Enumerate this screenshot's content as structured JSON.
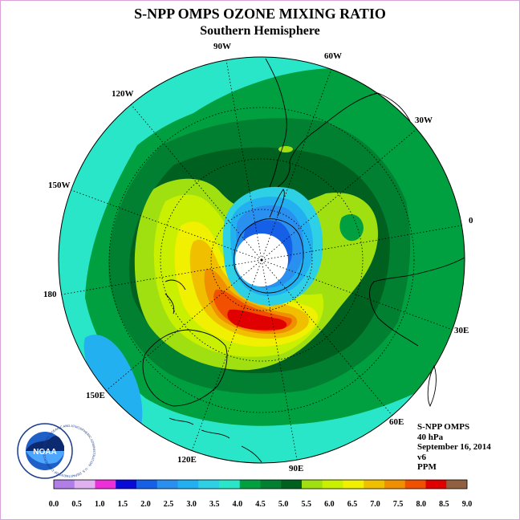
{
  "title": "S-NPP OMPS OZONE MIXING RATIO",
  "subtitle": "Southern Hemisphere",
  "longitude_labels": {
    "w90": "90W",
    "w60": "60W",
    "w30": "30W",
    "zero": "0",
    "e30": "30E",
    "e60": "60E",
    "e90": "90E",
    "e120": "120E",
    "e150": "150E",
    "d180": "180",
    "w150": "150W",
    "w120": "120W"
  },
  "info": {
    "instrument": "S-NPP OMPS",
    "level": "40 hPa",
    "date": "September 16, 2014",
    "version": "v6",
    "units": "PPM"
  },
  "logo": {
    "text": "NOAA",
    "ring_text": "NATIONAL OCEANIC AND ATMOSPHERIC ADMINISTRATION · U.S. DEPARTMENT OF COMMERCE"
  },
  "colorbar": {
    "ticks": [
      "0.0",
      "0.5",
      "1.0",
      "1.5",
      "2.0",
      "2.5",
      "3.0",
      "3.5",
      "4.0",
      "4.5",
      "5.0",
      "5.5",
      "6.0",
      "6.5",
      "7.0",
      "7.5",
      "8.0",
      "8.5",
      "9.0"
    ],
    "colors": [
      "#b07ee6",
      "#e0b0f0",
      "#ee2ed8",
      "#0a0ad8",
      "#1560e6",
      "#2a90f0",
      "#22b0f0",
      "#2ed0e6",
      "#2ae6c8",
      "#00a040",
      "#008030",
      "#006020",
      "#a0e010",
      "#c8f000",
      "#f0f000",
      "#f0c000",
      "#f09000",
      "#f05000",
      "#e00000",
      "#906040"
    ]
  },
  "map_colors": {
    "outer": "#2ae6c8",
    "ring_mid": "#00a040",
    "ring_dark": "#008030",
    "darkest": "#006020",
    "yg": "#a0e010",
    "yellowish": "#c8f000",
    "yellow": "#f0f000",
    "orange1": "#f0c000",
    "orange2": "#f09000",
    "orange3": "#f05000",
    "red": "#e00000",
    "hole_cyan": "#2ed0e6",
    "hole_light": "#22b0f0",
    "hole_blue": "#2a90f0",
    "hole_darker": "#1560e6",
    "hole_center": "#ffffff",
    "light_blue": "#22b0f0"
  }
}
